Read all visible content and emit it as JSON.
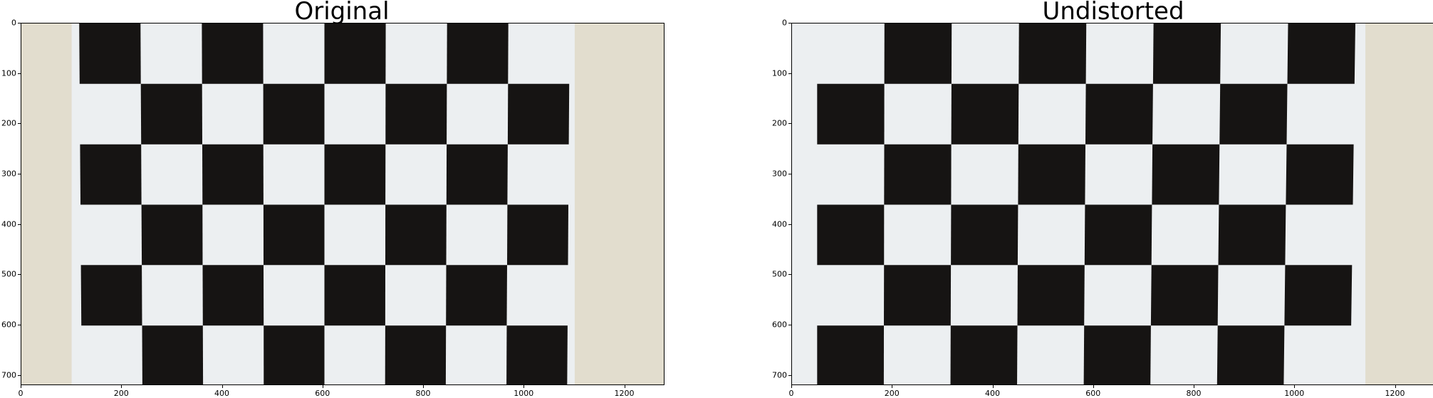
{
  "panels": [
    {
      "title": "Original",
      "x_ticks": [
        "0",
        "200",
        "400",
        "600",
        "800",
        "1000",
        "1200"
      ],
      "y_ticks": [
        "0",
        "100",
        "200",
        "300",
        "400",
        "500",
        "600",
        "700"
      ],
      "image": "distorted chessboard calibration photo"
    },
    {
      "title": "Undistorted",
      "x_ticks": [
        "0",
        "200",
        "400",
        "600",
        "800",
        "1000",
        "1200"
      ],
      "y_ticks": [
        "0",
        "100",
        "200",
        "300",
        "400",
        "500",
        "600",
        "700"
      ],
      "image": "undistorted chessboard calibration photo"
    }
  ],
  "axis": {
    "x_range": [
      0,
      1280
    ],
    "y_range": [
      0,
      720
    ]
  },
  "colors": {
    "wall": "#e2ddce",
    "paper": "#eceff1",
    "square": "#161413"
  }
}
